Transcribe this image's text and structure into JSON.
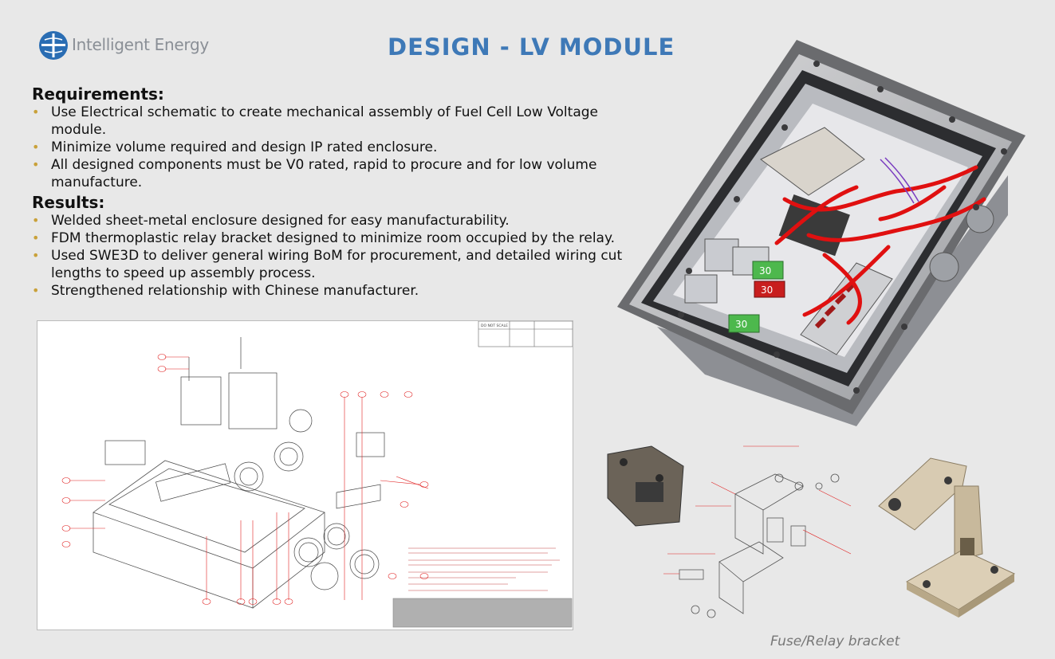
{
  "brand": {
    "name": "Intelligent Energy"
  },
  "title": "DESIGN - LV MODULE",
  "requirements": {
    "heading": "Requirements:",
    "items": [
      "Use Electrical schematic to create mechanical assembly of Fuel Cell Low Voltage module.",
      "Minimize volume required and design IP rated enclosure.",
      "All designed components must be V0 rated, rapid to procure and for low volume manufacture."
    ]
  },
  "results": {
    "heading": "Results:",
    "items": [
      "Welded sheet-metal enclosure designed for easy manufacturability.",
      "FDM thermoplastic relay bracket designed to minimize room occupied by the relay.",
      "Used SWE3D to deliver general wiring BoM for procurement, and detailed wiring cut lengths to speed up assembly process.",
      "Strengthened relationship with Chinese manufacturer."
    ]
  },
  "drawing": {
    "stamp": "DO NOT SCALE"
  },
  "components": {
    "fuse_labels": [
      "30",
      "30",
      "30"
    ]
  },
  "caption": "Fuse/Relay bracket",
  "colors": {
    "title": "#3e79b7",
    "bullet": "#c9a13a",
    "wire": "#e01010",
    "fuse_green": "#4db84d"
  }
}
